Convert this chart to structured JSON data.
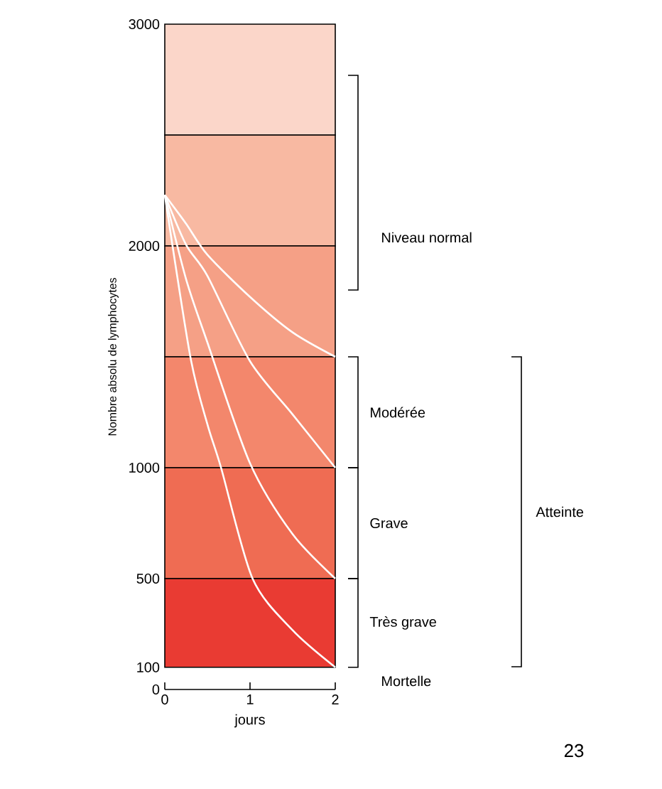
{
  "chart_data": {
    "type": "line",
    "xlabel": "jours",
    "ylabel": "Nombre absolu de lymphocytes",
    "xlim": [
      0,
      2
    ],
    "xticks": [
      0,
      1,
      2
    ],
    "ylim": [
      0,
      3000
    ],
    "yticks": [
      0,
      100,
      500,
      1000,
      2000,
      3000
    ],
    "series": [
      {
        "color": "#ffffff",
        "x": [
          0,
          0.25,
          0.5,
          1,
          1.5,
          2
        ],
        "values": [
          2230,
          2100,
          1960,
          1770,
          1610,
          1500
        ]
      },
      {
        "color": "#ffffff",
        "x": [
          0,
          0.25,
          0.5,
          1,
          1.5,
          2
        ],
        "values": [
          2230,
          2005,
          1865,
          1480,
          1240,
          1000
        ]
      },
      {
        "color": "#ffffff",
        "x": [
          0,
          0.25,
          0.5,
          1,
          1.5,
          2
        ],
        "values": [
          2230,
          1850,
          1565,
          1020,
          700,
          500
        ]
      },
      {
        "color": "#ffffff",
        "x": [
          0,
          0.3,
          0.5,
          0.66,
          1.03,
          1.5,
          2
        ],
        "values": [
          2230,
          1500,
          1196,
          1000,
          500,
          267,
          100
        ]
      }
    ],
    "bands": [
      {
        "axis": "y",
        "from": 2500,
        "to": 3000,
        "color": "#fbd6c9"
      },
      {
        "axis": "y",
        "from": 2000,
        "to": 2500,
        "color": "#f8b9a2"
      },
      {
        "axis": "y",
        "from": 1500,
        "to": 2000,
        "color": "#f5a086"
      },
      {
        "axis": "y",
        "from": 1000,
        "to": 1500,
        "color": "#f3876c",
        "label": "Modérée"
      },
      {
        "axis": "y",
        "from": 500,
        "to": 1000,
        "color": "#ef6c53",
        "label": "Grave"
      },
      {
        "axis": "y",
        "from": 100,
        "to": 500,
        "color": "#e93b33",
        "label": "Très grave"
      }
    ],
    "annotations": [
      "Niveau normal",
      "Mortelle",
      "Atteinte",
      "23"
    ]
  }
}
